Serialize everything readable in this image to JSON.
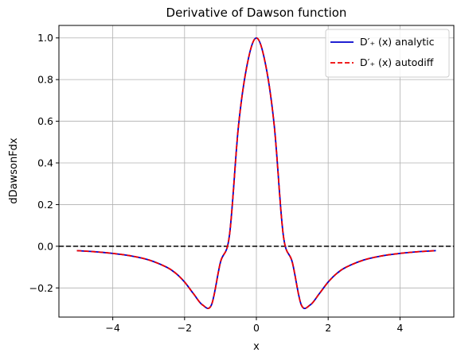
{
  "chart_data": {
    "type": "line",
    "title": "Derivative of Dawson function",
    "xlabel": "x",
    "ylabel": "dDawsonFdx",
    "xlim": [
      -5.5,
      5.5
    ],
    "ylim": [
      -0.34,
      1.06
    ],
    "xticks": [
      -4,
      -2,
      0,
      2,
      4
    ],
    "xtick_labels": [
      "−4",
      "−2",
      "0",
      "2",
      "4"
    ],
    "yticks": [
      -0.2,
      0.0,
      0.2,
      0.4,
      0.6,
      0.8,
      1.0
    ],
    "ytick_labels": [
      "−0.2",
      "0.0",
      "0.2",
      "0.4",
      "0.6",
      "0.8",
      "1.0"
    ],
    "grid": true,
    "legend_position": "top-right",
    "x": [
      -5.0,
      -4.5,
      -4.0,
      -3.5,
      -3.0,
      -2.5,
      -2.25,
      -2.0,
      -1.75,
      -1.5,
      -1.25,
      -1.0,
      -0.75,
      -0.5,
      -0.25,
      0.0,
      0.25,
      0.5,
      0.75,
      1.0,
      1.25,
      1.5,
      1.75,
      2.0,
      2.25,
      2.5,
      3.0,
      3.5,
      4.0,
      4.5,
      5.0
    ],
    "series": [
      {
        "name": "D′₊ (x) analytic",
        "color": "#0000cc",
        "style": "solid",
        "values": [
          -0.0211,
          -0.0264,
          -0.0342,
          -0.046,
          -0.0655,
          -0.1005,
          -0.1291,
          -0.1717,
          -0.2283,
          -0.2816,
          -0.2809,
          -0.0762,
          0.0526,
          0.5748,
          0.8775,
          1.0,
          0.8775,
          0.5748,
          0.0526,
          -0.0762,
          -0.2809,
          -0.2816,
          -0.2283,
          -0.1717,
          -0.1291,
          -0.1005,
          -0.0655,
          -0.046,
          -0.0342,
          -0.0264,
          -0.0211
        ]
      },
      {
        "name": "D′₊ (x) autodiff",
        "color": "#ee0000",
        "style": "dashed",
        "values": [
          -0.0211,
          -0.0264,
          -0.0342,
          -0.046,
          -0.0655,
          -0.1005,
          -0.1291,
          -0.1717,
          -0.2283,
          -0.2816,
          -0.2809,
          -0.0762,
          0.0526,
          0.5748,
          0.8775,
          1.0,
          0.8775,
          0.5748,
          0.0526,
          -0.0762,
          -0.2809,
          -0.2816,
          -0.2283,
          -0.1717,
          -0.1291,
          -0.1005,
          -0.0655,
          -0.046,
          -0.0342,
          -0.0264,
          -0.0211
        ]
      }
    ],
    "reference_line": {
      "y": 0.0,
      "color": "#000000",
      "style": "dashed"
    }
  }
}
